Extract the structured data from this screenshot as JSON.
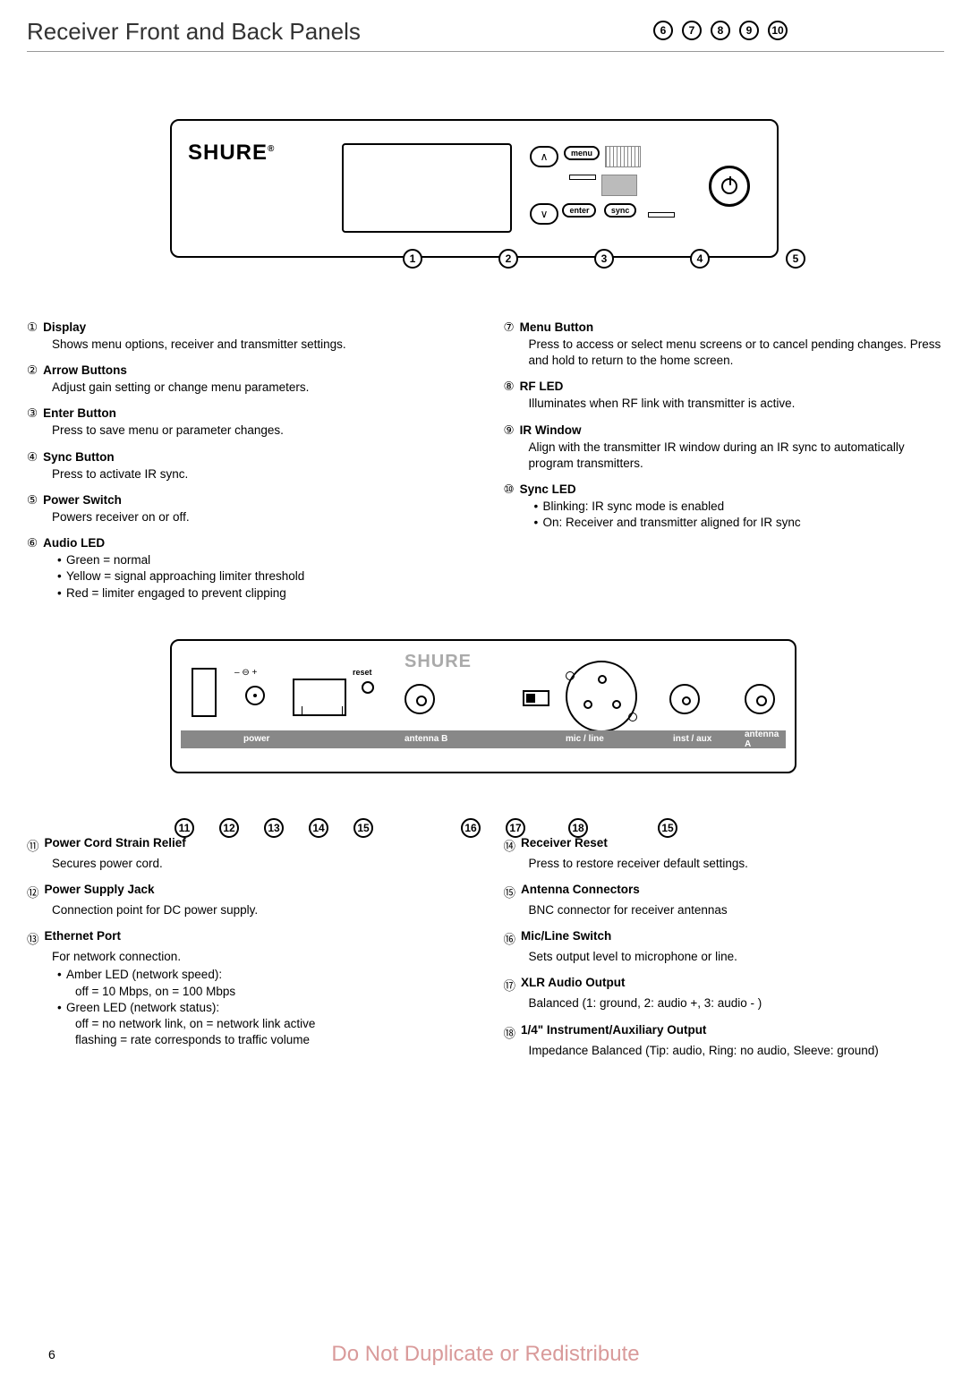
{
  "page_title": "Receiver Front and Back Panels",
  "page_number": "6",
  "watermark": "Do Not Duplicate or Redistribute",
  "brand": "SHURE",
  "front_buttons": {
    "menu": "menu",
    "enter": "enter",
    "sync": "sync"
  },
  "back_labels": {
    "power": "power",
    "antennaB": "antenna  B",
    "micline": "mic / line",
    "instaux": "inst / aux",
    "antennaA": "antenna  A",
    "reset": "reset"
  },
  "front_callouts_top": [
    "6",
    "7",
    "8",
    "9",
    "10"
  ],
  "front_callouts_bottom": [
    "1",
    "2",
    "3",
    "4",
    "5"
  ],
  "back_callouts": [
    "11",
    "12",
    "13",
    "14",
    "15",
    "16",
    "17",
    "18",
    "15"
  ],
  "front_left": [
    {
      "n": "①",
      "t": "Display",
      "d": "Shows menu options, receiver and transmitter settings."
    },
    {
      "n": "②",
      "t": "Arrow Buttons",
      "d": "Adjust gain setting or change menu parameters."
    },
    {
      "n": "③",
      "t": "Enter Button",
      "d": "Press to save menu or parameter changes."
    },
    {
      "n": "④",
      "t": "Sync Button",
      "d": "Press to activate IR sync."
    },
    {
      "n": "⑤",
      "t": "Power Switch",
      "d": "Powers receiver on or off."
    },
    {
      "n": "⑥",
      "t": "Audio LED",
      "bullets": [
        "Green = normal",
        "Yellow = signal approaching limiter threshold",
        "Red = limiter engaged to prevent clipping"
      ]
    }
  ],
  "front_right": [
    {
      "n": "⑦",
      "t": "Menu Button",
      "d": "Press to access or select menu screens or to cancel pending changes. Press and hold to return to the home screen."
    },
    {
      "n": "⑧",
      "t": "RF LED",
      "d": "Illuminates when RF link with transmitter is active."
    },
    {
      "n": "⑨",
      "t": "IR Window",
      "d": "Align with the transmitter IR window during an IR sync to automatically program transmitters."
    },
    {
      "n": "⑩",
      "t": "Sync LED",
      "bullets": [
        "Blinking: IR sync mode is enabled",
        "On: Receiver and transmitter aligned for IR sync"
      ]
    }
  ],
  "back_left": [
    {
      "n": "⑪",
      "t": "Power Cord Strain Relief",
      "d": "Secures power cord."
    },
    {
      "n": "⑫",
      "t": "Power Supply Jack",
      "d": "Connection point for DC power supply."
    },
    {
      "n": "⑬",
      "t": "Ethernet Port",
      "d": "For network connection.",
      "bullets": [
        "Amber LED (network speed):\noff = 10 Mbps, on = 100 Mbps",
        "Green LED (network status):\noff = no network link, on = network link active\nflashing = rate corresponds to traffic volume"
      ]
    }
  ],
  "back_right": [
    {
      "n": "⑭",
      "t": "Receiver Reset",
      "d": "Press to restore receiver default settings."
    },
    {
      "n": "⑮",
      "t": "Antenna Connectors",
      "d": "BNC connector for receiver antennas"
    },
    {
      "n": "⑯",
      "t": "Mic/Line Switch",
      "d": "Sets output level to microphone or line."
    },
    {
      "n": "⑰",
      "t": "XLR Audio Output",
      "d": "Balanced (1: ground, 2: audio +, 3: audio - )"
    },
    {
      "n": "⑱",
      "t": "1/4\" Instrument/Auxiliary Output",
      "d": "Impedance Balanced (Tip: audio, Ring: no audio, Sleeve: ground)"
    }
  ]
}
